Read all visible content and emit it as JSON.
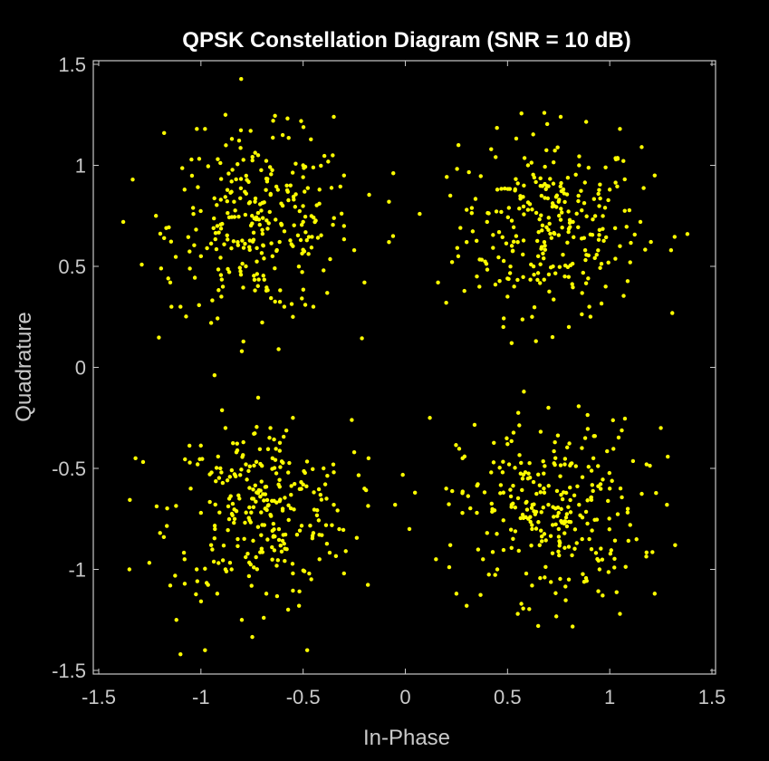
{
  "chart_data": {
    "type": "scatter",
    "title": "QPSK Constellation Diagram (SNR = 10 dB)",
    "xlabel": "In-Phase",
    "ylabel": "Quadrature",
    "xlim": [
      -1.5,
      1.5
    ],
    "ylim": [
      -1.5,
      1.5
    ],
    "xticks": [
      -1.5,
      -1,
      -0.5,
      0,
      0.5,
      1,
      1.5
    ],
    "yticks": [
      -1.5,
      -1,
      -0.5,
      0,
      0.5,
      1,
      1.5
    ],
    "xtick_labels": [
      "-1.5",
      "-1",
      "-0.5",
      "0",
      "0.5",
      "1",
      "1.5"
    ],
    "ytick_labels": [
      "-1.5",
      "-1",
      "-0.5",
      "0",
      "0.5",
      "1",
      "1.5"
    ],
    "grid": false,
    "legend": "none",
    "background_color": "#000000",
    "axes_color": "#c9c9c9",
    "marker_color": "#ffff00",
    "series": [
      {
        "symbols_per_quadrant": 250,
        "constellation_points": [
          [
            0.707,
            0.707
          ],
          [
            -0.707,
            0.707
          ],
          [
            -0.707,
            -0.707
          ],
          [
            0.707,
            -0.707
          ]
        ],
        "noise_sigma": 0.22,
        "points": [
          [
            -1.38,
            0.72
          ],
          [
            -1.22,
            0.75
          ],
          [
            -1.18,
            0.64
          ],
          [
            -1.18,
            1.16
          ],
          [
            -1.16,
            0.44
          ],
          [
            -1.15,
            0.42
          ],
          [
            -1.1,
            0.3
          ],
          [
            -1.08,
            0.88
          ],
          [
            -1.02,
            1.18
          ],
          [
            -0.98,
            1.18
          ],
          [
            -0.95,
            0.22
          ],
          [
            -0.88,
            1.25
          ],
          [
            -0.8,
            0.08
          ],
          [
            -0.82,
            0.62
          ],
          [
            -0.75,
            0.75
          ],
          [
            -0.7,
            0.68
          ],
          [
            -0.65,
            0.55
          ],
          [
            -0.6,
            0.8
          ],
          [
            -0.55,
            0.6
          ],
          [
            -0.5,
            0.72
          ],
          [
            -0.42,
            0.88
          ],
          [
            -0.35,
            1.24
          ],
          [
            -0.3,
            0.95
          ],
          [
            -0.25,
            0.58
          ],
          [
            -0.2,
            0.42
          ],
          [
            -0.55,
            0.25
          ],
          [
            -0.62,
            0.09
          ],
          [
            -0.9,
            0.35
          ],
          [
            -1.0,
            0.55
          ],
          [
            -0.85,
            0.92
          ],
          [
            -0.72,
            1.05
          ],
          [
            -0.6,
            1.15
          ],
          [
            -0.5,
            1.0
          ],
          [
            -0.4,
            0.48
          ],
          [
            -0.45,
            0.3
          ],
          [
            -0.3,
            0.7
          ],
          [
            -0.78,
            0.5
          ],
          [
            -0.68,
            0.38
          ],
          [
            -0.92,
            0.7
          ],
          [
            -0.58,
            0.9
          ],
          [
            0.16,
            0.42
          ],
          [
            0.2,
            0.32
          ],
          [
            0.22,
            0.85
          ],
          [
            0.26,
            1.1
          ],
          [
            0.3,
            0.62
          ],
          [
            0.35,
            0.45
          ],
          [
            0.4,
            0.72
          ],
          [
            0.45,
            0.88
          ],
          [
            0.5,
            0.35
          ],
          [
            0.55,
            0.62
          ],
          [
            0.58,
            0.9
          ],
          [
            0.6,
            0.78
          ],
          [
            0.62,
            0.25
          ],
          [
            0.65,
            0.55
          ],
          [
            0.68,
            1.26
          ],
          [
            0.7,
            0.68
          ],
          [
            0.72,
            0.15
          ],
          [
            0.75,
            0.82
          ],
          [
            0.78,
            0.45
          ],
          [
            0.82,
            0.72
          ],
          [
            0.85,
            1.0
          ],
          [
            0.88,
            0.58
          ],
          [
            0.9,
            0.3
          ],
          [
            0.95,
            0.68
          ],
          [
            1.0,
            0.88
          ],
          [
            1.05,
            1.18
          ],
          [
            1.1,
            0.52
          ],
          [
            1.15,
            0.72
          ],
          [
            1.22,
            0.95
          ],
          [
            1.3,
            0.58
          ],
          [
            1.38,
            0.66
          ],
          [
            0.52,
            0.12
          ],
          [
            0.42,
            1.08
          ],
          [
            0.76,
            1.24
          ],
          [
            0.8,
            0.2
          ],
          [
            0.98,
            0.4
          ],
          [
            0.6,
            1.0
          ],
          [
            0.3,
            0.78
          ],
          [
            1.05,
            0.6
          ],
          [
            0.68,
            0.62
          ],
          [
            -1.35,
            -1.0
          ],
          [
            -1.32,
            -0.45
          ],
          [
            -1.2,
            -0.82
          ],
          [
            -1.15,
            -1.08
          ],
          [
            -1.12,
            -1.25
          ],
          [
            -1.1,
            -1.42
          ],
          [
            -1.05,
            -0.6
          ],
          [
            -1.0,
            -0.72
          ],
          [
            -0.98,
            -1.4
          ],
          [
            -0.95,
            -0.88
          ],
          [
            -0.9,
            -0.52
          ],
          [
            -0.85,
            -1.0
          ],
          [
            -0.8,
            -1.25
          ],
          [
            -0.75,
            -0.65
          ],
          [
            -0.72,
            -0.15
          ],
          [
            -0.7,
            -0.78
          ],
          [
            -0.68,
            -1.12
          ],
          [
            -0.65,
            -0.45
          ],
          [
            -0.6,
            -0.7
          ],
          [
            -0.58,
            -0.9
          ],
          [
            -0.55,
            -0.25
          ],
          [
            -0.52,
            -1.18
          ],
          [
            -0.5,
            -0.58
          ],
          [
            -0.48,
            -1.4
          ],
          [
            -0.45,
            -0.82
          ],
          [
            -0.4,
            -0.5
          ],
          [
            -0.35,
            -0.68
          ],
          [
            -0.3,
            -1.02
          ],
          [
            -0.25,
            -0.42
          ],
          [
            -0.2,
            -0.6
          ],
          [
            -0.18,
            -0.45
          ],
          [
            -1.08,
            -0.95
          ],
          [
            -0.88,
            -0.3
          ],
          [
            -0.78,
            -0.48
          ],
          [
            -0.62,
            -0.58
          ],
          [
            -0.82,
            -0.85
          ],
          [
            -0.92,
            -1.12
          ],
          [
            -0.42,
            -0.95
          ],
          [
            -0.66,
            -0.3
          ],
          [
            -0.55,
            -1.02
          ],
          [
            0.15,
            -0.95
          ],
          [
            0.2,
            -0.6
          ],
          [
            0.22,
            -0.88
          ],
          [
            0.25,
            -1.12
          ],
          [
            0.28,
            -0.45
          ],
          [
            0.3,
            -1.18
          ],
          [
            0.35,
            -0.72
          ],
          [
            0.4,
            -0.82
          ],
          [
            0.42,
            -0.52
          ],
          [
            0.45,
            -1.0
          ],
          [
            0.5,
            -0.38
          ],
          [
            0.52,
            -0.68
          ],
          [
            0.55,
            -1.22
          ],
          [
            0.58,
            -0.12
          ],
          [
            0.6,
            -0.55
          ],
          [
            0.62,
            -0.8
          ],
          [
            0.65,
            -1.28
          ],
          [
            0.68,
            -0.62
          ],
          [
            0.7,
            -0.2
          ],
          [
            0.72,
            -0.92
          ],
          [
            0.75,
            -0.72
          ],
          [
            0.78,
            -0.48
          ],
          [
            0.8,
            -1.05
          ],
          [
            0.85,
            -0.68
          ],
          [
            0.88,
            -0.35
          ],
          [
            0.9,
            -0.85
          ],
          [
            0.95,
            -1.0
          ],
          [
            1.0,
            -0.6
          ],
          [
            1.05,
            -1.22
          ],
          [
            1.1,
            -0.78
          ],
          [
            1.18,
            -0.48
          ],
          [
            1.22,
            -1.12
          ],
          [
            1.28,
            -0.68
          ],
          [
            1.32,
            -0.88
          ],
          [
            1.25,
            -0.3
          ],
          [
            0.62,
            -1.08
          ],
          [
            0.48,
            -0.62
          ],
          [
            0.92,
            -0.45
          ],
          [
            0.38,
            -0.95
          ],
          [
            0.7,
            -0.68
          ],
          [
            -0.08,
            0.82
          ],
          [
            -0.08,
            0.62
          ],
          [
            -0.06,
            0.65
          ],
          [
            -0.05,
            -0.68
          ],
          [
            0.02,
            -0.8
          ],
          [
            0.12,
            -0.25
          ]
        ]
      }
    ]
  }
}
